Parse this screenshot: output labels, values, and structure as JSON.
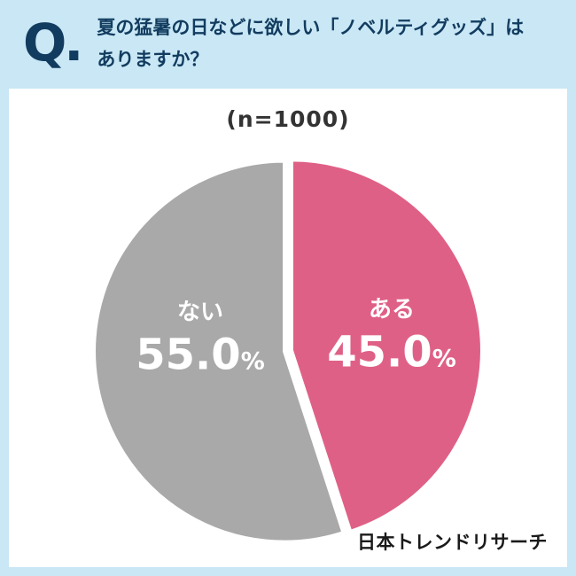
{
  "header": {
    "q_icon": "Q.",
    "question_line1": "夏の猛暑の日などに欲しい「ノベルティグッズ」は",
    "question_line2": "ありますか？"
  },
  "chart": {
    "sample_label": "(n=1000)",
    "slices": [
      {
        "label": "ある",
        "value": "45.0",
        "unit": "%",
        "color": "#df6086"
      },
      {
        "label": "ない",
        "value": "55.0",
        "unit": "%",
        "color": "#a9a9a9"
      }
    ]
  },
  "footer": {
    "source": "日本トレンドリサーチ"
  },
  "colors": {
    "background": "#c9e7f5",
    "panel": "#ffffff",
    "heading": "#123c5f",
    "pink": "#df6086",
    "gray": "#a9a9a9",
    "label_text": "#ffffff"
  },
  "chart_data": {
    "type": "pie",
    "title": "夏の猛暑の日などに欲しい「ノベルティグッズ」はありますか？",
    "sample_size_label": "(n=1000)",
    "categories": [
      "ある",
      "ない"
    ],
    "values": [
      45.0,
      55.0
    ],
    "unit": "%",
    "colors": [
      "#df6086",
      "#a9a9a9"
    ],
    "start_angle": "top",
    "direction": "clockwise",
    "legend_position": "none",
    "labels_inside": true
  }
}
